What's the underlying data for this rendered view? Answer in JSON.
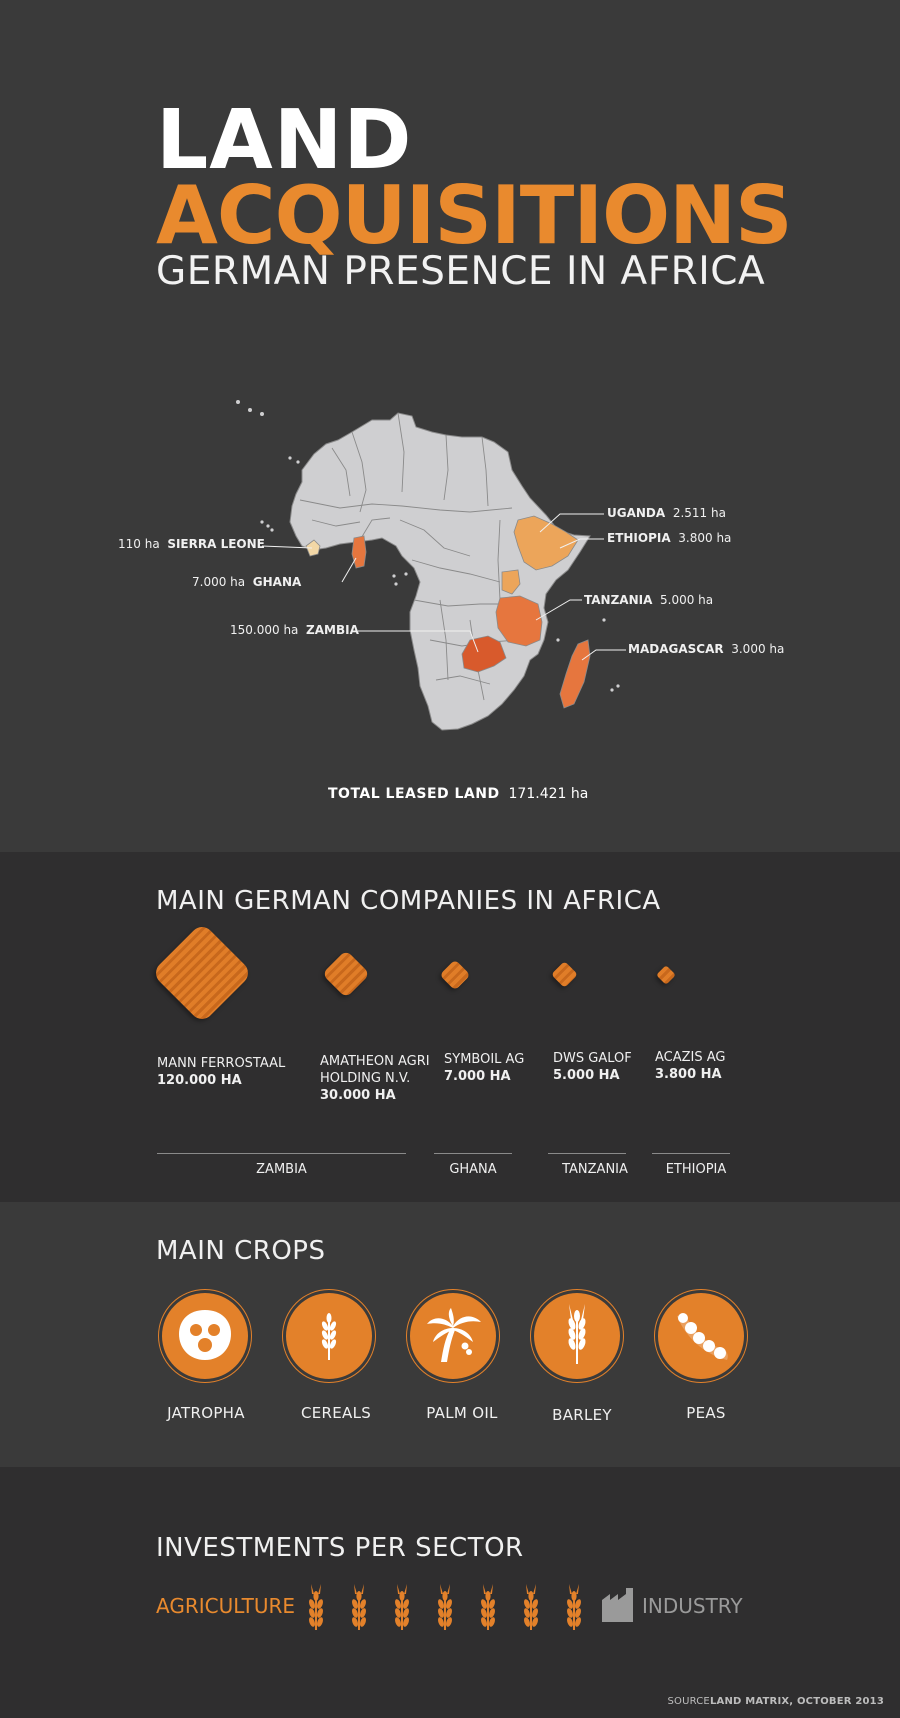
{
  "header": {
    "title_line1": "LAND",
    "title_line2": "ACQUISITIONS",
    "subtitle": "GERMAN PRESENCE IN AFRICA"
  },
  "map": {
    "labels": {
      "sierra_leone": {
        "country": "SIERRA LEONE",
        "area": "110 ha"
      },
      "ghana": {
        "country": "GHANA",
        "area": "7.000 ha"
      },
      "zambia": {
        "country": "ZAMBIA",
        "area": "150.000 ha"
      },
      "uganda": {
        "country": "UGANDA",
        "area": "2.511 ha"
      },
      "ethiopia": {
        "country": "ETHIOPIA",
        "area": "3.800 ha"
      },
      "tanzania": {
        "country": "TANZANIA",
        "area": "5.000 ha"
      },
      "madagascar": {
        "country": "MADAGASCAR",
        "area": "3.000 ha"
      }
    },
    "total_label": "TOTAL LEASED LAND",
    "total_value": "171.421 ha",
    "colors": {
      "land": "#cfcfd1",
      "border": "#8a8a8a",
      "light": "#f2d7a6",
      "orange": "#eca55a",
      "deep": "#d85a2c",
      "mid": "#e6763e"
    }
  },
  "companies": {
    "title": "MAIN GERMAN COMPANIES IN AFRICA",
    "items": [
      {
        "name": "MANN FERROSTAAL",
        "area": "120.000 HA",
        "area_ha": 120000
      },
      {
        "name1": "AMATHEON AGRI",
        "name2": "HOLDING N.V.",
        "area": "30.000 HA",
        "area_ha": 30000
      },
      {
        "name": "SYMBOIL AG",
        "area": "7.000 HA",
        "area_ha": 7000
      },
      {
        "name": "DWS GALOF",
        "area": "5.000 HA",
        "area_ha": 5000
      },
      {
        "name": "ACAZIS AG",
        "area": "3.800 HA",
        "area_ha": 3800
      }
    ],
    "countries": [
      "ZAMBIA",
      "GHANA",
      "TANZANIA",
      "ETHIOPIA"
    ]
  },
  "crops": {
    "title": "MAIN CROPS",
    "items": [
      {
        "label": "JATROPHA",
        "icon": "jatropha-icon"
      },
      {
        "label": "CEREALS",
        "icon": "wheat-icon"
      },
      {
        "label": "PALM OIL",
        "icon": "palm-tree-icon"
      },
      {
        "label": "BARLEY",
        "icon": "barley-icon"
      },
      {
        "label": "PEAS",
        "icon": "peas-icon"
      }
    ],
    "accent": "#e3812a"
  },
  "investments": {
    "title": "INVESTMENTS PER SECTOR",
    "agriculture_label": "AGRICULTURE",
    "industry_label": "INDUSTRY",
    "agriculture_icons": 7,
    "industry_icons": 1
  },
  "footer": {
    "source_prefix": "SOURCE",
    "source_text": "LAND MATRIX, OCTOBER 2013"
  }
}
